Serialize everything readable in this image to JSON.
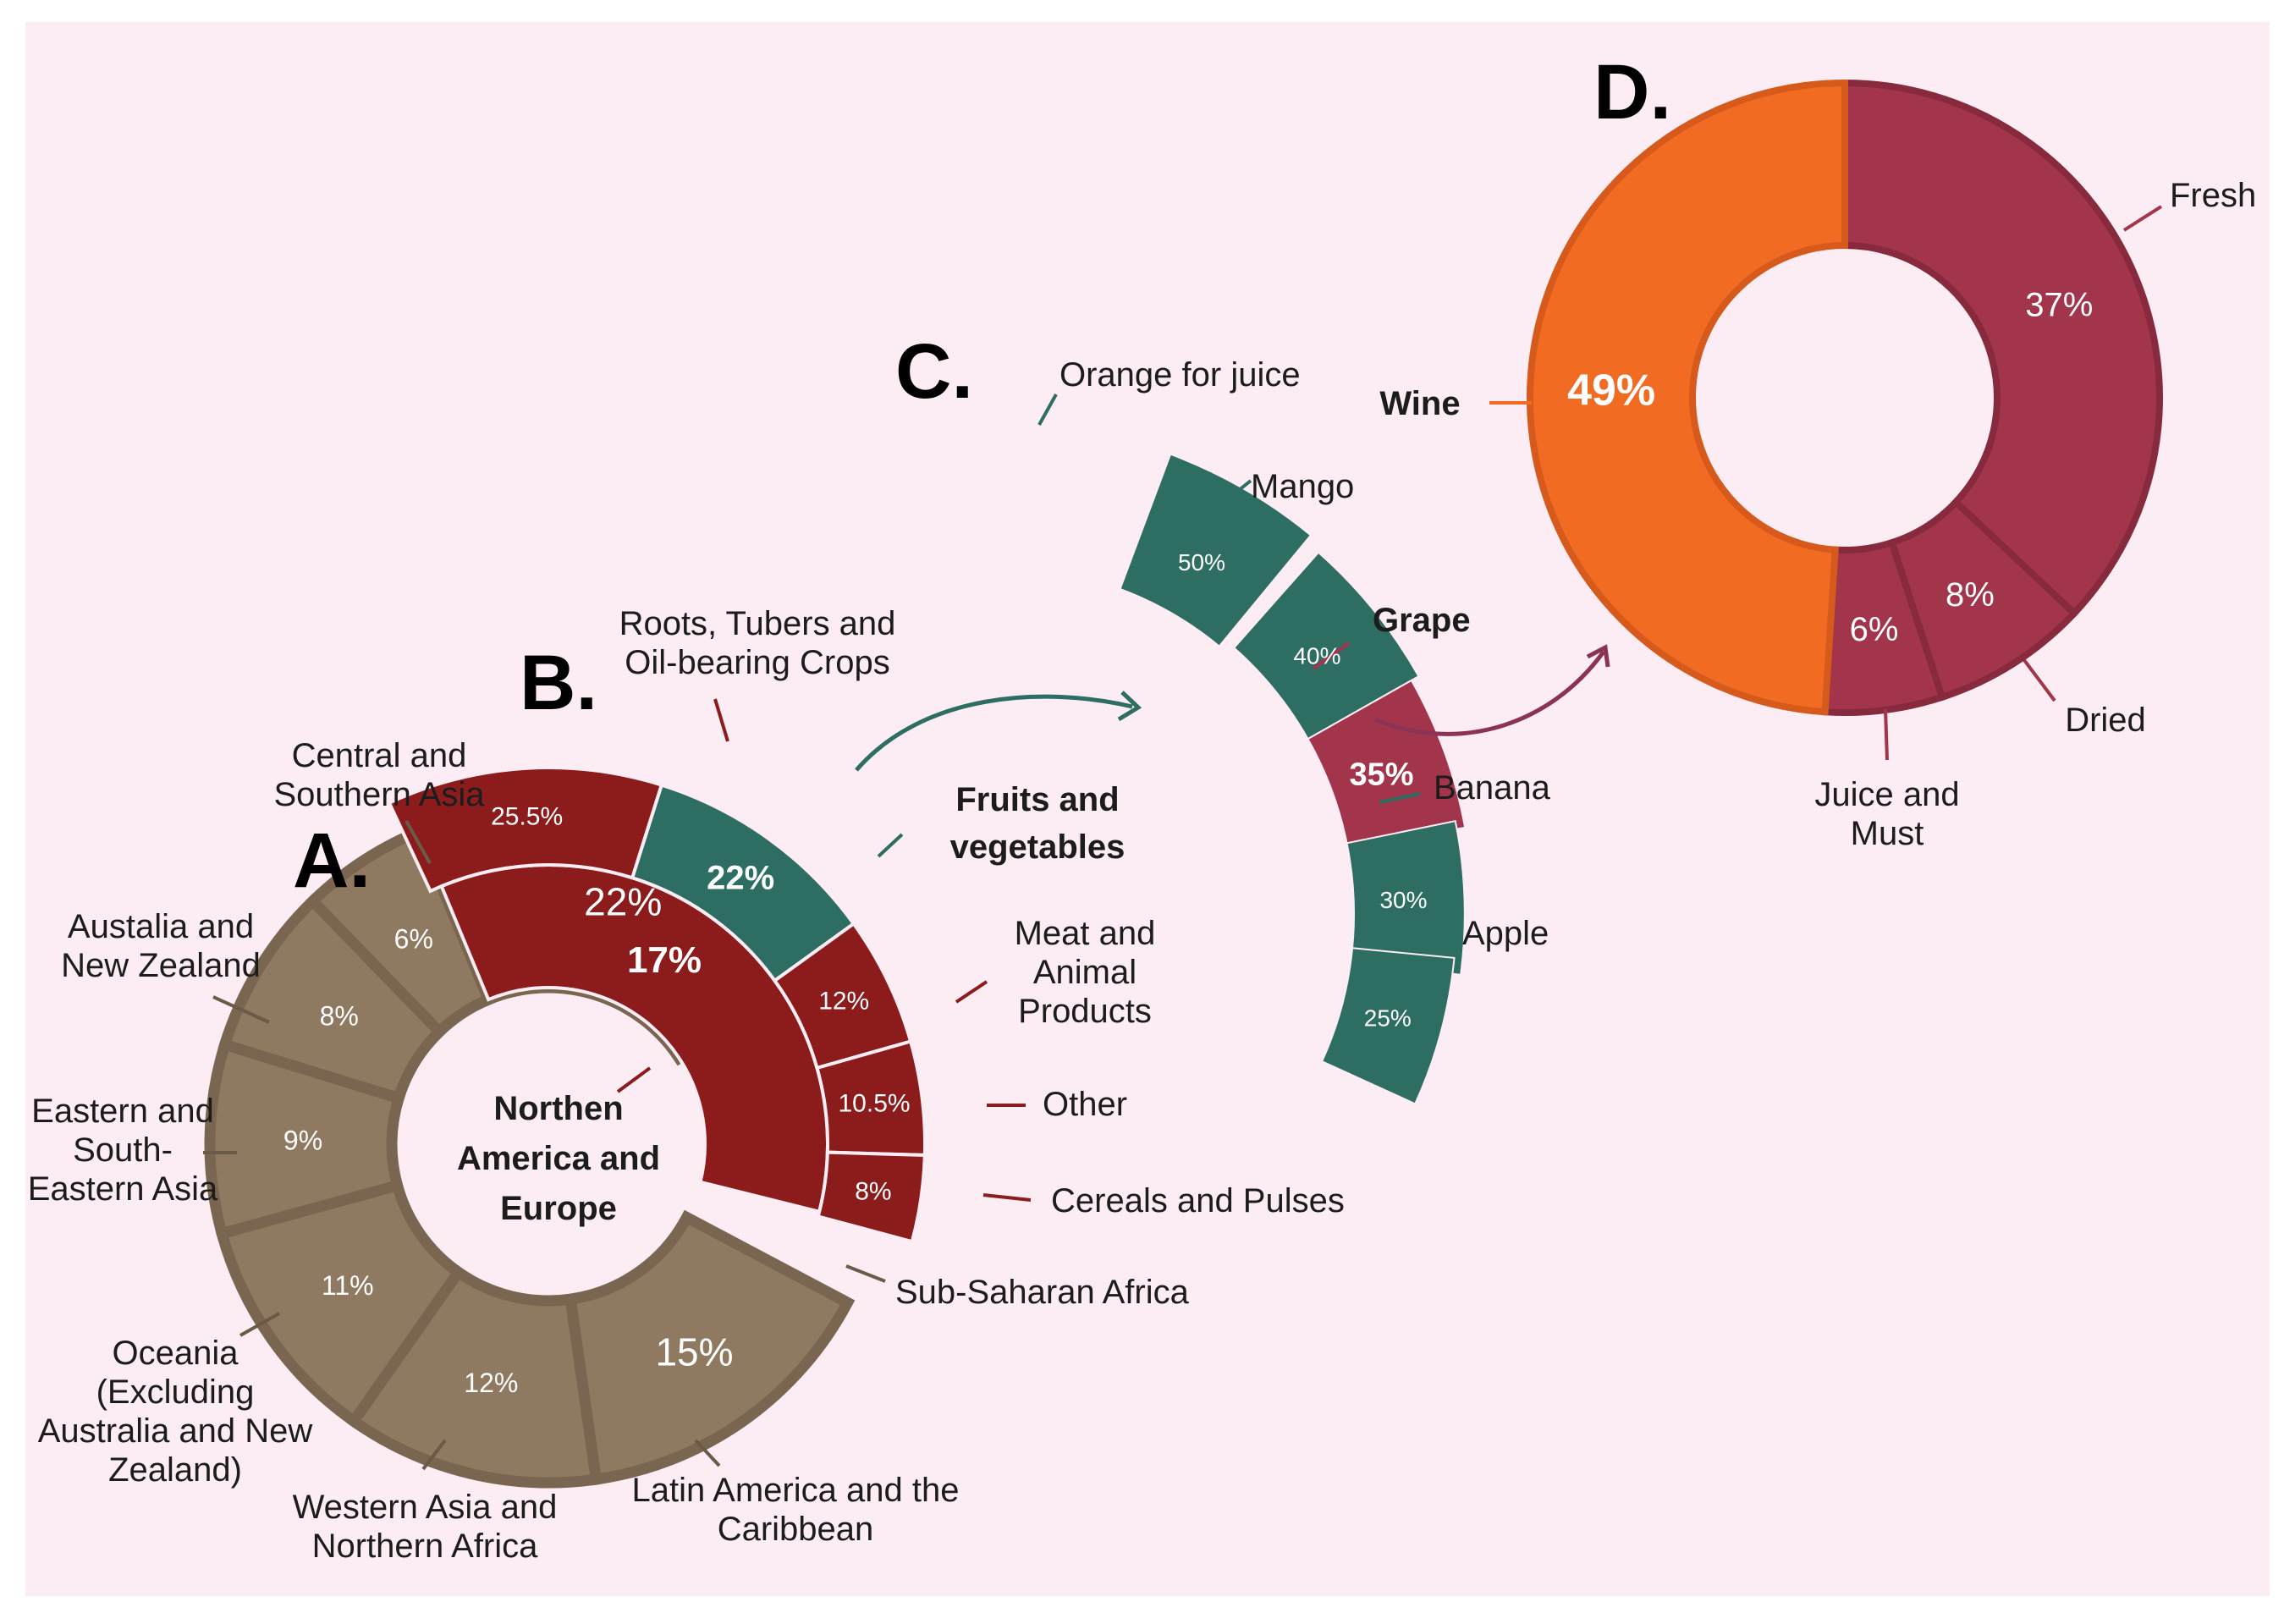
{
  "colors": {
    "background": "#fcecf4",
    "tan": "#8f7a61",
    "tan_divider": "#7a6650",
    "red": "#8c1c1c",
    "teal": "#2e6e62",
    "grape": "#a2344b",
    "orange": "#f26b23",
    "arrow_teal": "#2e6e62",
    "arrow_grape": "#8a3355"
  },
  "panels": {
    "a": "A.",
    "b": "B.",
    "c": "C.",
    "d": "D."
  },
  "chart_data": [
    {
      "type": "pie",
      "panel": "A.",
      "center_label": [
        "Northen",
        "America and",
        "Europe"
      ],
      "slices": [
        {
          "label": "Central and Southern Asia",
          "value": 22,
          "value_text": "22%"
        },
        {
          "label": "Northen America and Europe",
          "value": 17,
          "value_text": ""
        },
        {
          "label": "Sub-Saharan Africa",
          "value": 15,
          "value_text": "15%"
        },
        {
          "label": "Latin America and the Caribbean",
          "value": 12,
          "value_text": "12%"
        },
        {
          "label": "Western Asia and Northern Africa",
          "value": 11,
          "value_text": "11%"
        },
        {
          "label": "Oceania (Excluding Australia and New Zealand)",
          "value": 9,
          "value_text": "9%"
        },
        {
          "label": "Eastern and South-Eastern Asia",
          "value": 8,
          "value_text": "8%"
        },
        {
          "label": "Austalia and New Zealand",
          "value": 6,
          "value_text": "6%"
        }
      ]
    },
    {
      "type": "pie",
      "panel": "B.",
      "parent_value_text": "17%",
      "slices": [
        {
          "label": "Roots, Tubers and Oil-bearing Crops",
          "value": 25.5,
          "value_text": "25.5%"
        },
        {
          "label": "Fruits and vegetables",
          "value": 22,
          "value_text": "22%"
        },
        {
          "label": "Meat and Animal Products",
          "value": 12,
          "value_text": "12%"
        },
        {
          "label": "Other",
          "value": 10.5,
          "value_text": "10.5%"
        },
        {
          "label": "Cereals and Pulses",
          "value": 8,
          "value_text": "8%"
        }
      ]
    },
    {
      "type": "bar",
      "panel": "C.",
      "categories": [
        "Orange for juice",
        "Mango",
        "Grape",
        "Banana",
        "Apple"
      ],
      "values": [
        50,
        40,
        35,
        30,
        25
      ],
      "value_texts": [
        "50%",
        "40%",
        "35%",
        "30%",
        "25%"
      ]
    },
    {
      "type": "pie",
      "panel": "D.",
      "slices": [
        {
          "label": "Fresh",
          "value": 37,
          "value_text": "37%"
        },
        {
          "label": "Dried",
          "value": 8,
          "value_text": "8%"
        },
        {
          "label": "Juice and Must",
          "value": 6,
          "value_text": "6%"
        },
        {
          "label": "Wine",
          "value": 49,
          "value_text": "49%"
        }
      ]
    }
  ],
  "labels": {
    "a_central": [
      "Central and",
      "Southern Asia"
    ],
    "a_austalia": [
      "Austalia and",
      "New Zealand"
    ],
    "a_eastern": [
      "Eastern and",
      "South-",
      "Eastern Asia"
    ],
    "a_oceania": [
      "Oceania",
      "(Excluding",
      "Australia and New",
      "Zealand)"
    ],
    "a_western": [
      "Western Asia and",
      "Northern Africa"
    ],
    "a_latin": [
      "Latin America and the",
      "Caribbean"
    ],
    "a_subsaharan": [
      "Sub-Saharan Africa"
    ],
    "b_roots": [
      "Roots, Tubers and",
      "Oil-bearing Crops"
    ],
    "b_fruits": [
      "Fruits and",
      "vegetables"
    ],
    "b_meat": [
      "Meat and",
      "Animal",
      "Products"
    ],
    "b_other": [
      "Other"
    ],
    "b_cereals": [
      "Cereals and Pulses"
    ],
    "c_orange": [
      "Orange for juice"
    ],
    "c_mango": [
      "Mango"
    ],
    "c_grape": [
      "Grape"
    ],
    "c_banana": [
      "Banana"
    ],
    "c_apple": [
      "Apple"
    ],
    "d_fresh": [
      "Fresh"
    ],
    "d_dried": [
      "Dried"
    ],
    "d_juice": [
      "Juice and",
      "Must"
    ],
    "d_wine": [
      "Wine"
    ]
  }
}
